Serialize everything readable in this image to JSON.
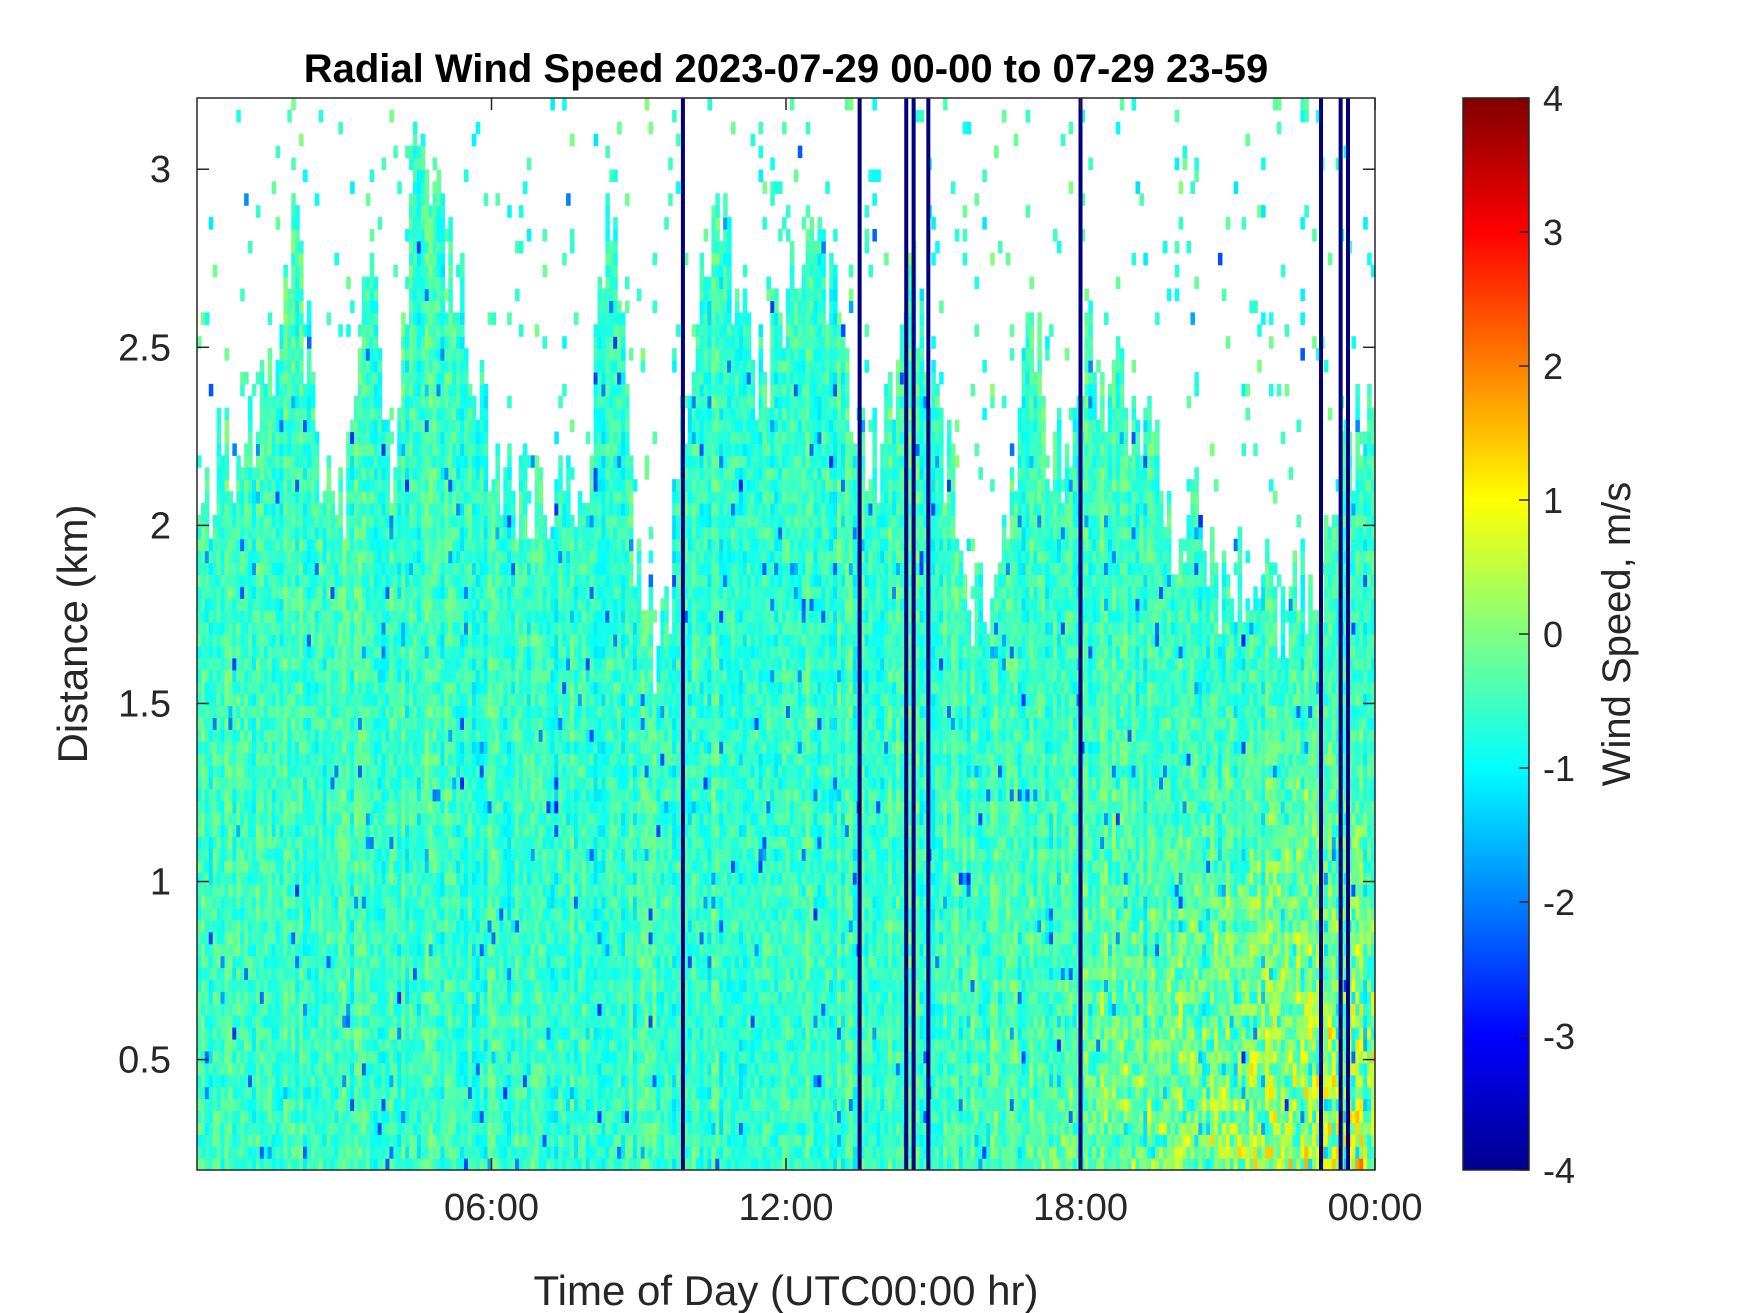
{
  "chart_data": {
    "type": "heatmap",
    "title": "Radial Wind Speed 2023-07-29 00-00 to 07-29 23-59",
    "xlabel": "Time of Day (UTC00:00 hr)",
    "ylabel": "Distance (km)",
    "colorbar_label": "Wind Speed, m/s",
    "colormap": "jet",
    "colors": [
      "#00008f",
      "#0000ff",
      "#0080ff",
      "#00ffff",
      "#80ff80",
      "#ffff00",
      "#ff8000",
      "#ff0000",
      "#800000"
    ],
    "xlim": [
      0,
      24
    ],
    "ylim": [
      0.19,
      3.2
    ],
    "clim": [
      -4,
      4
    ],
    "x_ticks": [
      6,
      12,
      18,
      24
    ],
    "x_tick_labels": [
      "06:00",
      "12:00",
      "18:00",
      "00:00"
    ],
    "y_ticks": [
      0.5,
      1,
      1.5,
      2,
      2.5,
      3
    ],
    "y_tick_labels": [
      "0.5",
      "1",
      "1.5",
      "2",
      "2.5",
      "3"
    ],
    "colorbar_ticks": [
      -4,
      -3,
      -2,
      -1,
      0,
      1,
      2,
      3,
      4
    ],
    "colorbar_tick_labels": [
      "-4",
      "-3",
      "-2",
      "-1",
      "0",
      "1",
      "2",
      "3",
      "4"
    ],
    "grid": false,
    "data_top_profile": {
      "hours": [
        0,
        0.5,
        1,
        1.5,
        2,
        2.5,
        3,
        3.5,
        4,
        4.5,
        5,
        5.5,
        6,
        6.5,
        7,
        7.5,
        8,
        8.5,
        9,
        9.5,
        10,
        10.5,
        11,
        11.5,
        12,
        12.5,
        13,
        13.5,
        14,
        14.5,
        15,
        15.5,
        16,
        16.5,
        17,
        17.5,
        18,
        18.5,
        19,
        19.5,
        20,
        20.5,
        21,
        21.5,
        22,
        22.5,
        23,
        23.5,
        24
      ],
      "distance_km": [
        2.0,
        2.2,
        2.2,
        2.5,
        2.8,
        2.2,
        2.1,
        2.8,
        2.0,
        3.1,
        2.8,
        2.6,
        2.2,
        2.1,
        2.1,
        2.0,
        2.2,
        3.0,
        1.8,
        1.6,
        2.4,
        2.9,
        2.6,
        2.4,
        2.6,
        2.8,
        2.7,
        2.2,
        2.2,
        2.8,
        2.4,
        2.0,
        1.7,
        1.9,
        2.6,
        2.1,
        2.5,
        2.4,
        2.3,
        2.2,
        2.0,
        2.0,
        1.8,
        1.9,
        1.8,
        1.8,
        1.9,
        2.2,
        2.3
      ]
    },
    "dropout_lines_hours": [
      9.9,
      13.5,
      14.45,
      14.6,
      14.9,
      18.0,
      22.9,
      23.3,
      23.45
    ]
  }
}
